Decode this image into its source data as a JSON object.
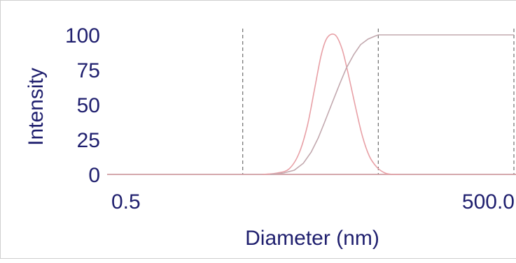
{
  "chart_data": {
    "type": "line",
    "xlabel": "Diameter (nm)",
    "ylabel": "Intensity",
    "x_scale": "log",
    "xlim": [
      0.5,
      500.0
    ],
    "ylim": [
      0,
      100
    ],
    "x_tick_labels": [
      "0.5",
      "500.0"
    ],
    "y_ticks": [
      0,
      25,
      50,
      75,
      100
    ],
    "y_tick_labels": [
      "0",
      "25",
      "50",
      "75",
      "100"
    ],
    "vertical_dashed_lines_x": [
      5.0,
      50.0,
      500.0
    ],
    "grid": false,
    "series": [
      {
        "kind": "distribution",
        "color": "#e8a0a6",
        "x": [
          7.0,
          9.0,
          11.0,
          13.0,
          15.0,
          17.0,
          19.0,
          21.0,
          24.0,
          27.0,
          30.0,
          34.0,
          38.0,
          43.0,
          49.0,
          56.0,
          64.0,
          72.0
        ],
        "y": [
          0,
          1,
          4,
          15,
          35,
          62,
          86,
          98,
          100,
          90,
          72,
          48,
          28,
          13,
          5,
          1,
          0,
          0
        ]
      },
      {
        "kind": "cumulative",
        "color": "#c2a8ae",
        "x": [
          8.0,
          10.0,
          12.0,
          14.0,
          16.0,
          18.0,
          20.0,
          23.0,
          26.0,
          29.0,
          33.0,
          37.0,
          42.0,
          47.0,
          50.0,
          55.0,
          500.0
        ],
        "y": [
          0,
          1,
          3,
          8,
          16,
          26,
          37,
          52,
          65,
          76,
          86,
          93,
          97,
          99,
          100,
          100,
          100
        ]
      }
    ]
  }
}
